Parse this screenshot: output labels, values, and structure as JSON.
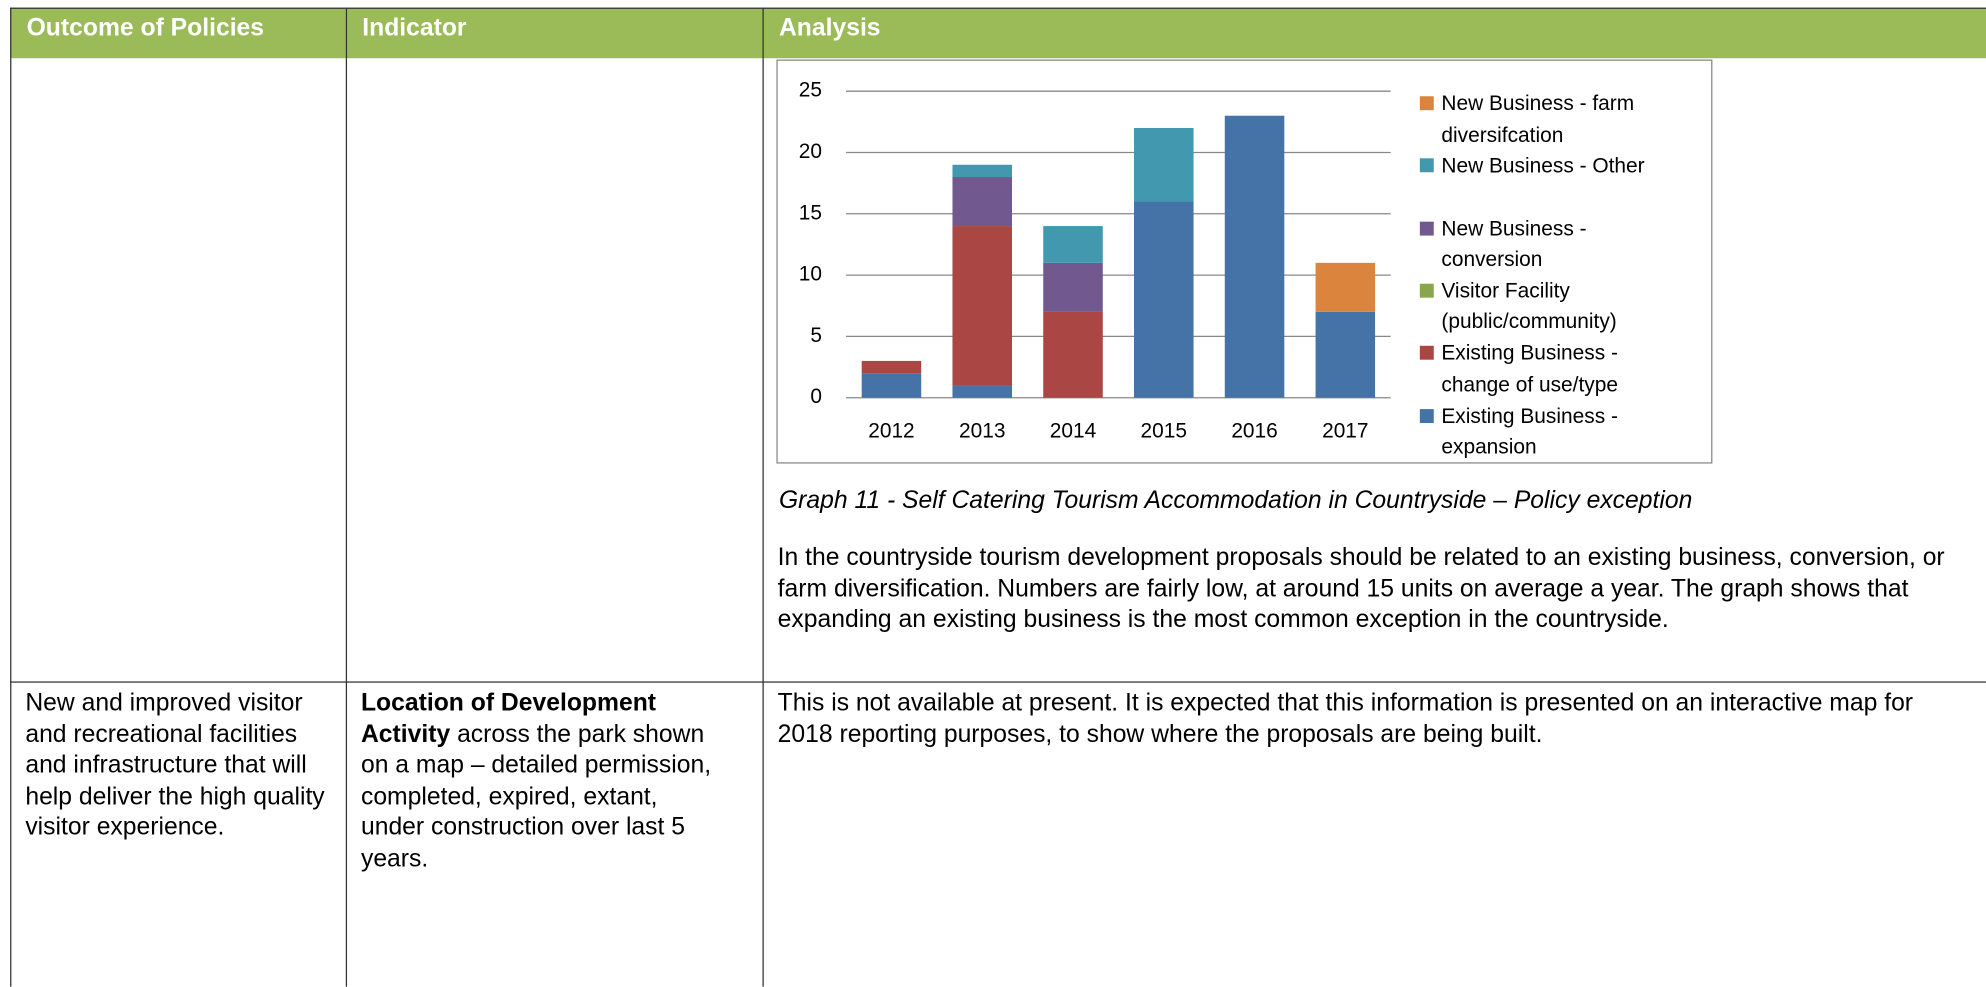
{
  "table": {
    "header": [
      "Outcome of Policies",
      "Indicator",
      "Analysis"
    ],
    "rows": [
      {
        "caption": "Graph 11 - Self Catering Tourism Accommodation in Countryside – Policy exception",
        "analysis": "In the countryside tourism development proposals should be related to an existing business, conversion, or farm diversification.  Numbers are fairly low, at around 15 units on average a year. The graph shows that expanding an existing business is the most common exception in the countryside."
      },
      {
        "outcome": "New and improved visitor and recreational facilities and infrastructure that will help deliver the high quality visitor experience.",
        "indicator_bold": "Location of Development Activity",
        "indicator_rest": " across the park shown on a map – detailed permission, completed, expired, extant, under construction over last 5 years.",
        "analysis": "This is not available at present. It is expected that this information is presented on an interactive map for 2018 reporting purposes, to show where the proposals are being built."
      }
    ]
  },
  "chart_data": {
    "type": "bar",
    "stacked": true,
    "grid": true,
    "legend": "right",
    "categories": [
      "2012",
      "2013",
      "2014",
      "2015",
      "2016",
      "2017"
    ],
    "ylim": [
      0,
      25
    ],
    "yticks": [
      0,
      5,
      10,
      15,
      20,
      25
    ],
    "series": [
      {
        "name": "Existing Business - expansion",
        "color": "#4572a7",
        "values": [
          2,
          1,
          0,
          16,
          23,
          7
        ]
      },
      {
        "name": "Existing Business - change of use/type",
        "color": "#aa4643",
        "values": [
          1,
          13,
          7,
          0,
          0,
          0
        ]
      },
      {
        "name": "Visitor Facility (public/community)",
        "color": "#89a54e",
        "values": [
          0,
          0,
          0,
          0,
          0,
          0
        ]
      },
      {
        "name": "New Business - conversion",
        "color": "#71588f",
        "values": [
          0,
          4,
          4,
          0,
          0,
          0
        ]
      },
      {
        "name": "New Business - Other",
        "color": "#4198af",
        "values": [
          0,
          1,
          3,
          6,
          0,
          0
        ]
      },
      {
        "name": "New Business - farm diversifcation",
        "color": "#db843d",
        "values": [
          0,
          0,
          0,
          0,
          0,
          4
        ]
      }
    ]
  }
}
